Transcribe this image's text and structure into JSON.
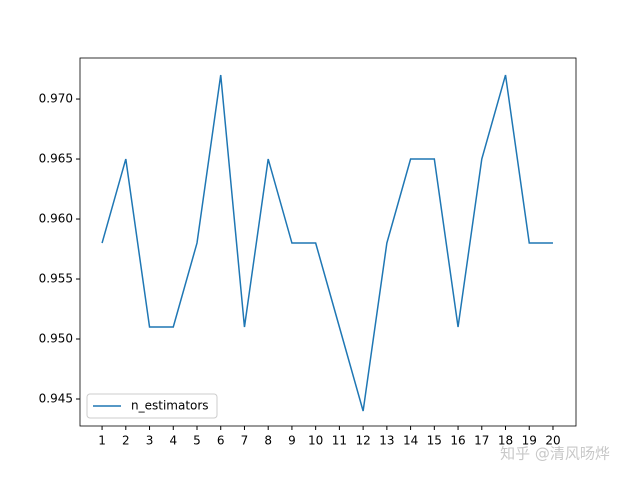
{
  "chart_data": {
    "type": "line",
    "x": [
      1,
      2,
      3,
      4,
      5,
      6,
      7,
      8,
      9,
      10,
      11,
      12,
      13,
      14,
      15,
      16,
      17,
      18,
      19,
      20
    ],
    "series": [
      {
        "name": "n_estimators",
        "color": "#1f77b4",
        "values": [
          0.958,
          0.965,
          0.951,
          0.951,
          0.958,
          0.972,
          0.951,
          0.965,
          0.958,
          0.958,
          0.951,
          0.944,
          0.958,
          0.965,
          0.965,
          0.951,
          0.965,
          0.972,
          0.958,
          0.958
        ]
      }
    ],
    "xlim": [
      0.07,
      20.97
    ],
    "ylim": [
      0.94275,
      0.97342
    ],
    "xticks": [
      1,
      2,
      3,
      4,
      5,
      6,
      7,
      8,
      9,
      10,
      11,
      12,
      13,
      14,
      15,
      16,
      17,
      18,
      19,
      20
    ],
    "yticks": [
      0.945,
      {
        "value": 0.95,
        "label": "0.950"
      },
      0.955,
      {
        "value": 0.96,
        "label": "0.960"
      },
      0.965,
      {
        "value": 0.97,
        "label": "0.970"
      }
    ],
    "legend": "lower left",
    "watermark": "知乎 @清风旸烨"
  }
}
